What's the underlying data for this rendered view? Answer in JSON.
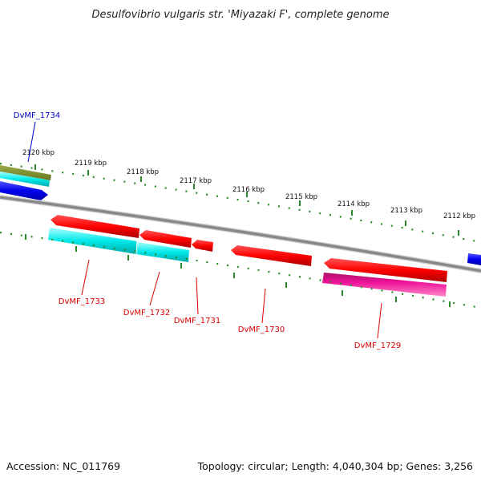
{
  "title": "Desulfovibrio vulgaris str. 'Miyazaki F', complete genome",
  "accession": "Accession: NC_011769",
  "summary": "Topology: circular; Length: 4,040,304 bp; Genes: 3,256",
  "tick_labels": [
    "2120 kbp",
    "2119 kbp",
    "2118 kbp",
    "2117 kbp",
    "2116 kbp",
    "2115 kbp",
    "2114 kbp",
    "2113 kbp",
    "2112 kbp"
  ],
  "genes": [
    {
      "label": "DvMF_1734",
      "color": "#0000cc"
    },
    {
      "label": "DvMF_1733",
      "color": "#dd0000"
    },
    {
      "label": "DvMF_1732",
      "color": "#dd0000"
    },
    {
      "label": "DvMF_1731",
      "color": "#dd0000"
    },
    {
      "label": "DvMF_1730",
      "color": "#dd0000"
    },
    {
      "label": "DvMF_1729",
      "color": "#dd0000"
    }
  ],
  "colors": {
    "backbone": "#888888",
    "tick": "#2a8a2a",
    "cds_forward": "#0000ee",
    "cds_reverse": "#ff0000",
    "cyan_feature": "#00e8e8",
    "magenta_feature": "#ee1199",
    "olive_feature": "#7a8a2a"
  }
}
